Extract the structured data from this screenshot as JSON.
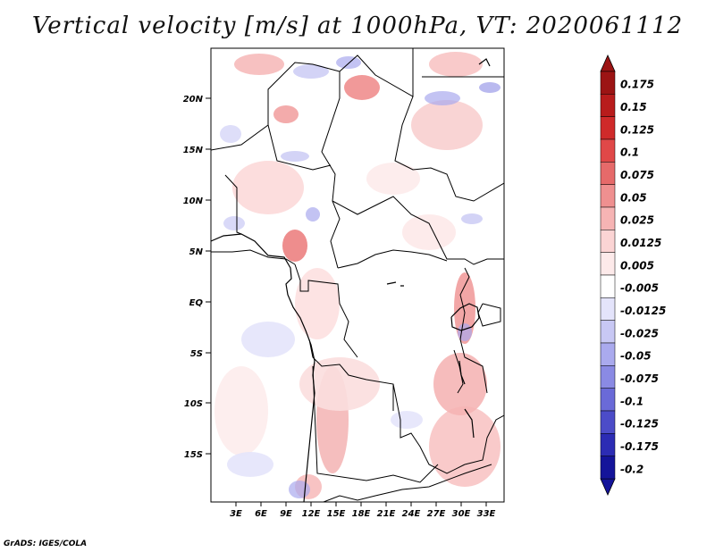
{
  "title": "Vertical velocity [m/s] at 1000hPa, VT: 2020061112",
  "credit": "GrADS: IGES/COLA",
  "lat_labels": [
    "20N",
    "15N",
    "10N",
    "5N",
    "EQ",
    "5S",
    "10S",
    "15S"
  ],
  "lon_labels": [
    "3E",
    "6E",
    "9E",
    "12E",
    "15E",
    "18E",
    "21E",
    "24E",
    "27E",
    "30E",
    "33E"
  ],
  "colorbar": {
    "levels": [
      "0.175",
      "0.15",
      "0.125",
      "0.1",
      "0.075",
      "0.05",
      "0.025",
      "0.0125",
      "0.005",
      "-0.005",
      "-0.0125",
      "-0.025",
      "-0.05",
      "-0.075",
      "-0.1",
      "-0.125",
      "-0.175",
      "-0.2"
    ],
    "colors": [
      "#9c1414",
      "#b81c1c",
      "#cf2a2a",
      "#e04848",
      "#e66a6a",
      "#ef9090",
      "#f6b4b4",
      "#fbd4d4",
      "#fdeaea",
      "#ffffff",
      "#e4e4fb",
      "#c8c8f4",
      "#aaaaee",
      "#8a8ae4",
      "#6a6ad8",
      "#4c4cc8",
      "#2c2cb4",
      "#14149a"
    ],
    "top_arrow_color": "#9c1414",
    "bottom_arrow_color": "#14149a"
  }
}
